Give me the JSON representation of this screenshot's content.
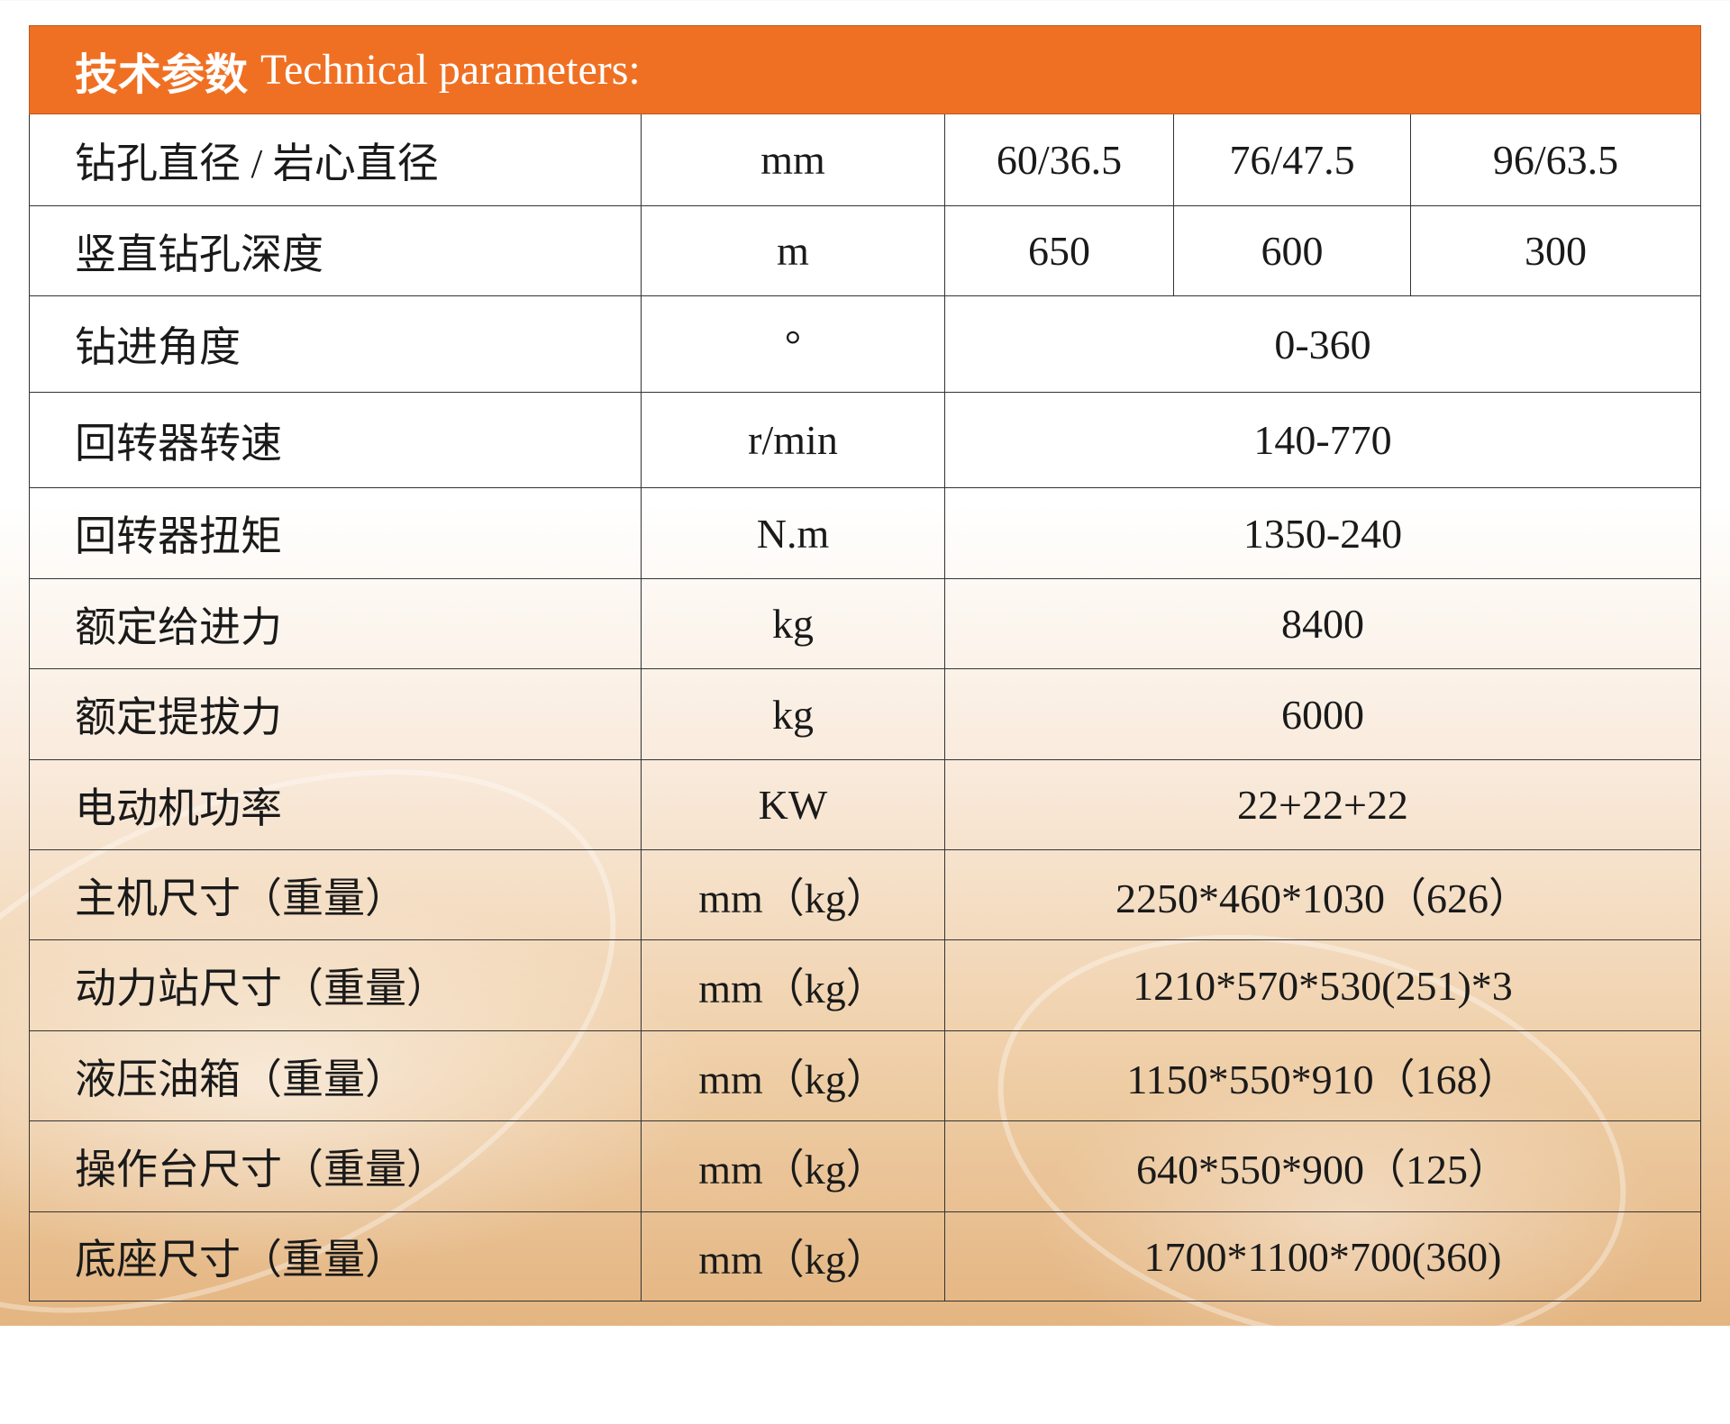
{
  "title": {
    "cn": "技术参数",
    "en": "Technical parameters:"
  },
  "colors": {
    "header_bg": "#f07023",
    "header_text": "#ffffff"
  },
  "rows": [
    {
      "param": "钻孔直径 / 岩心直径",
      "unit": "mm",
      "values": [
        "60/36.5",
        "76/47.5",
        "96/63.5"
      ]
    },
    {
      "param": "竖直钻孔深度",
      "unit": "m",
      "values": [
        "650",
        "600",
        "300"
      ]
    },
    {
      "param": "钻进角度",
      "unit": "°",
      "value": "0-360"
    },
    {
      "param": "回转器转速",
      "unit": "r/min",
      "value": "140-770"
    },
    {
      "param": "回转器扭矩",
      "unit": "N.m",
      "value": "1350-240"
    },
    {
      "param": "额定给进力",
      "unit": "kg",
      "value": "8400"
    },
    {
      "param": "额定提拔力",
      "unit": "kg",
      "value": "6000"
    },
    {
      "param": "电动机功率",
      "unit": "KW",
      "value": "22+22+22"
    },
    {
      "param": "主机尺寸（重量）",
      "unit": "mm（kg）",
      "value": "2250*460*1030（626）"
    },
    {
      "param": "动力站尺寸（重量）",
      "unit": "mm（kg）",
      "value": "1210*570*530(251)*3"
    },
    {
      "param": "液压油箱（重量）",
      "unit": "mm（kg）",
      "value": "1150*550*910（168）"
    },
    {
      "param": "操作台尺寸（重量）",
      "unit": "mm（kg）",
      "value": "640*550*900（125）"
    },
    {
      "param": "底座尺寸（重量）",
      "unit": "mm（kg）",
      "value": "1700*1100*700(360)"
    }
  ]
}
